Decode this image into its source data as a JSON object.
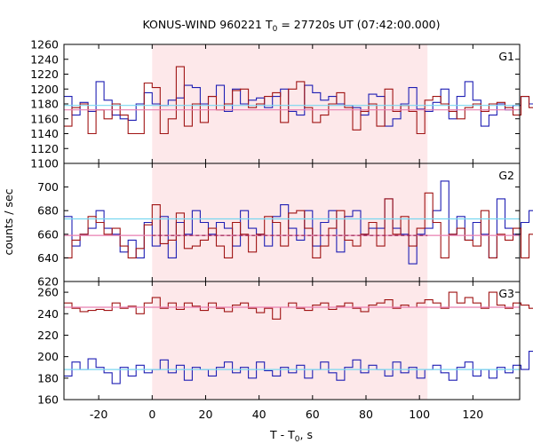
{
  "title_main": "KONUS-WIND 960221 T",
  "title_sub": "0",
  "title_rest": " = 27720s UT (07:42:00.000)",
  "ylabel": "counts / sec",
  "xlabel_main": "T - T",
  "xlabel_sub": "0",
  "xlabel_rest": ", s",
  "colors": {
    "blue": "#1f1fb4",
    "red": "#a01414",
    "cyan": "#7ad7f0",
    "pink": "#e87fb0",
    "shade": "#fde8ea"
  },
  "chart_data": [
    {
      "type": "line",
      "panel": "G1",
      "label": "G1",
      "x_start": -33,
      "bin_width": 3.0,
      "xlim": [
        -33,
        137.5
      ],
      "ylim": [
        1100,
        1260
      ],
      "yticks": [
        1100,
        1120,
        1140,
        1160,
        1180,
        1200,
        1220,
        1240,
        1260
      ],
      "shaded_interval": [
        0,
        103
      ],
      "background_levels": {
        "blue": 1178,
        "red": 1172
      },
      "series": [
        {
          "color": "blue",
          "values": [
            1190,
            1165,
            1182,
            1170,
            1210,
            1185,
            1165,
            1160,
            1158,
            1180,
            1195,
            1180,
            1178,
            1185,
            1188,
            1205,
            1202,
            1180,
            1190,
            1205,
            1170,
            1200,
            1180,
            1185,
            1188,
            1175,
            1190,
            1200,
            1170,
            1165,
            1205,
            1195,
            1185,
            1190,
            1180,
            1178,
            1175,
            1165,
            1193,
            1190,
            1150,
            1160,
            1180,
            1202,
            1173,
            1170,
            1182,
            1200,
            1160,
            1190,
            1210,
            1185,
            1150,
            1165,
            1180,
            1172,
            1178,
            1190,
            1180,
            1162
          ]
        },
        {
          "color": "red",
          "values": [
            1150,
            1175,
            1180,
            1140,
            1172,
            1160,
            1180,
            1165,
            1140,
            1140,
            1208,
            1202,
            1140,
            1160,
            1230,
            1150,
            1180,
            1155,
            1190,
            1172,
            1180,
            1198,
            1200,
            1175,
            1180,
            1190,
            1195,
            1155,
            1200,
            1210,
            1175,
            1155,
            1165,
            1180,
            1195,
            1175,
            1145,
            1170,
            1180,
            1150,
            1200,
            1170,
            1178,
            1170,
            1140,
            1185,
            1190,
            1180,
            1170,
            1160,
            1175,
            1180,
            1170,
            1180,
            1182,
            1175,
            1165,
            1190,
            1175,
            1145
          ]
        }
      ]
    },
    {
      "type": "line",
      "panel": "G2",
      "label": "G2",
      "x_start": -33,
      "bin_width": 3.0,
      "xlim": [
        -33,
        137.5
      ],
      "ylim": [
        620,
        720
      ],
      "yticks": [
        620,
        640,
        660,
        680,
        700
      ],
      "shaded_interval": [
        0,
        103
      ],
      "background_levels": {
        "blue": 673,
        "red": 659
      },
      "series": [
        {
          "color": "blue",
          "values": [
            675,
            650,
            660,
            665,
            680,
            665,
            660,
            645,
            655,
            640,
            670,
            650,
            675,
            640,
            670,
            660,
            680,
            670,
            660,
            670,
            665,
            650,
            680,
            665,
            660,
            650,
            675,
            685,
            665,
            655,
            680,
            650,
            670,
            680,
            645,
            675,
            680,
            660,
            665,
            665,
            690,
            665,
            660,
            635,
            660,
            665,
            680,
            705,
            660,
            675,
            655,
            670,
            660,
            640,
            690,
            665,
            660,
            670,
            680,
            640
          ]
        },
        {
          "color": "red",
          "values": [
            640,
            655,
            660,
            675,
            670,
            660,
            665,
            650,
            640,
            648,
            668,
            685,
            652,
            655,
            678,
            648,
            650,
            655,
            665,
            650,
            640,
            670,
            660,
            645,
            660,
            675,
            670,
            650,
            678,
            680,
            665,
            640,
            650,
            665,
            680,
            655,
            650,
            660,
            670,
            650,
            690,
            660,
            675,
            650,
            665,
            695,
            670,
            640,
            660,
            665,
            655,
            650,
            680,
            640,
            660,
            655,
            665,
            640,
            660,
            645
          ]
        }
      ]
    },
    {
      "type": "line",
      "panel": "G3",
      "label": "G3",
      "x_start": -33,
      "bin_width": 3.0,
      "xlim": [
        -33,
        137.5
      ],
      "ylim": [
        160,
        270
      ],
      "yticks": [
        160,
        180,
        200,
        220,
        240,
        260
      ],
      "shaded_interval": [
        0,
        103
      ],
      "background_levels": {
        "blue": 188,
        "red": 246
      },
      "series": [
        {
          "color": "blue",
          "values": [
            182,
            195,
            188,
            198,
            190,
            185,
            175,
            190,
            182,
            192,
            185,
            188,
            197,
            185,
            192,
            178,
            190,
            188,
            182,
            190,
            195,
            185,
            190,
            180,
            195,
            187,
            182,
            190,
            185,
            192,
            180,
            188,
            195,
            185,
            178,
            190,
            197,
            185,
            192,
            188,
            182,
            195,
            185,
            190,
            180,
            188,
            192,
            185,
            178,
            190,
            195,
            182,
            188,
            180,
            190,
            185,
            192,
            188,
            205,
            190
          ]
        },
        {
          "color": "red",
          "values": [
            250,
            245,
            242,
            243,
            244,
            243,
            250,
            245,
            247,
            240,
            250,
            255,
            245,
            250,
            244,
            250,
            247,
            243,
            250,
            245,
            242,
            248,
            250,
            245,
            241,
            245,
            235,
            246,
            250,
            245,
            243,
            248,
            250,
            244,
            247,
            250,
            245,
            242,
            248,
            250,
            253,
            245,
            248,
            246,
            250,
            253,
            250,
            245,
            260,
            250,
            255,
            250,
            245,
            260,
            248,
            245,
            250,
            248,
            245,
            248
          ]
        }
      ]
    }
  ],
  "x_axis": {
    "ticks": [
      -20,
      0,
      20,
      40,
      60,
      80,
      100,
      120
    ]
  }
}
